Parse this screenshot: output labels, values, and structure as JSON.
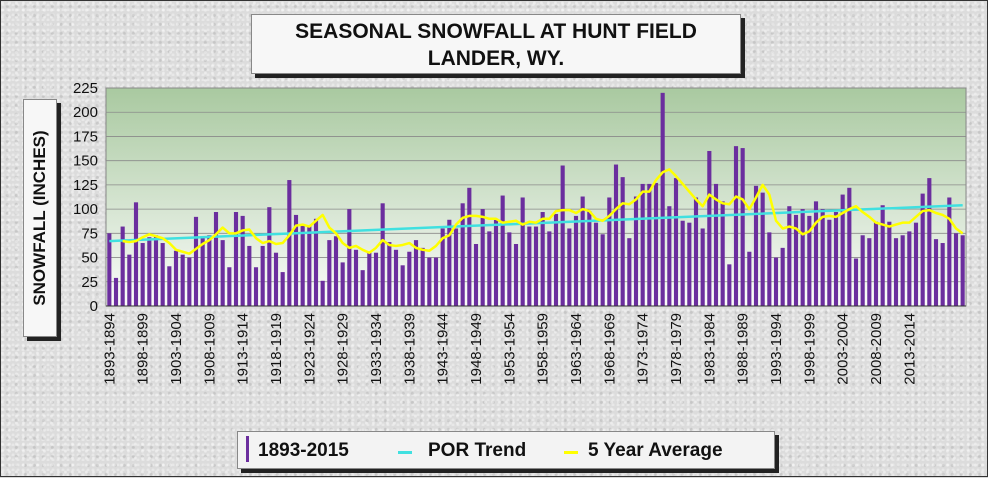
{
  "chart_data": {
    "type": "bar",
    "title_lines": [
      "SEASONAL SNOWFALL AT HUNT FIELD",
      "LANDER, WY."
    ],
    "ylabel": "SNOWFALL (INCHES)",
    "xlabel": "",
    "ylim": [
      0,
      225
    ],
    "yticks": [
      0,
      25,
      50,
      75,
      100,
      125,
      150,
      175,
      200,
      225
    ],
    "grid": true,
    "legend_position": "bottom",
    "xtick_labels": [
      "1893-1894",
      "1898-1899",
      "1903-1904",
      "1908-1909",
      "1913-1914",
      "1918-1919",
      "1923-1924",
      "1928-1929",
      "1933-1934",
      "1938-1939",
      "1943-1944",
      "1948-1949",
      "1953-1954",
      "1958-1959",
      "1963-1964",
      "1968-1969",
      "1973-1974",
      "1978-1979",
      "1983-1984",
      "1988-1989",
      "1993-1994",
      "1998-1999",
      "2003-2004",
      "2008-2009",
      "2013-2014"
    ],
    "first_season_start": 1893,
    "series": [
      {
        "name": "1893-2015",
        "kind": "bar",
        "color": "#6b2e9e",
        "values": [
          75,
          29,
          82,
          53,
          107,
          65,
          71,
          73,
          65,
          41,
          57,
          53,
          50,
          92,
          71,
          73,
          97,
          68,
          40,
          97,
          93,
          62,
          40,
          62,
          102,
          55,
          35,
          130,
          94,
          83,
          83,
          90,
          26,
          68,
          72,
          45,
          100,
          58,
          37,
          55,
          55,
          106,
          66,
          58,
          42,
          56,
          68,
          60,
          50,
          50,
          80,
          89,
          80,
          106,
          122,
          64,
          100,
          77,
          89,
          114,
          76,
          64,
          112,
          82,
          82,
          97,
          77,
          95,
          145,
          80,
          93,
          113,
          98,
          86,
          74,
          112,
          146,
          133,
          70,
          113,
          126,
          126,
          127,
          220,
          103,
          132,
          88,
          86,
          112,
          80,
          160,
          126,
          108,
          43,
          165,
          163,
          56,
          124,
          117,
          76,
          50,
          60,
          103,
          94,
          100,
          93,
          108,
          100,
          89,
          97,
          115,
          122,
          49,
          73,
          70,
          87,
          104,
          87,
          70,
          73,
          77,
          86,
          116,
          132,
          69,
          65,
          112,
          75,
          73
        ]
      },
      {
        "name": "POR Trend",
        "kind": "line",
        "color": "#40e0e0",
        "start": 67,
        "end": 104
      },
      {
        "name": "5 Year Average",
        "kind": "line",
        "color": "#ffff00",
        "values": [
          null,
          null,
          67,
          66,
          67,
          71,
          74,
          72,
          70,
          65,
          58,
          56,
          54,
          59,
          64,
          68,
          74,
          81,
          75,
          75,
          78,
          79,
          70,
          65,
          67,
          64,
          65,
          73,
          83,
          84,
          82,
          88,
          94,
          81,
          75,
          65,
          60,
          62,
          58,
          55,
          60,
          68,
          63,
          62,
          63,
          65,
          60,
          58,
          57,
          62,
          70,
          73,
          84,
          91,
          93,
          93,
          92,
          90,
          90,
          86,
          87,
          88,
          84,
          87,
          86,
          90,
          90,
          98,
          99,
          99,
          96,
          100,
          98,
          90,
          88,
          93,
          100,
          106,
          105,
          110,
          118,
          118,
          130,
          138,
          141,
          134,
          126,
          118,
          110,
          103,
          115,
          110,
          106,
          105,
          113,
          110,
          100,
          112,
          125,
          115,
          88,
          80,
          82,
          80,
          74,
          77,
          86,
          92,
          93,
          92,
          96,
          100,
          103,
          97,
          92,
          86,
          84,
          82,
          84,
          86,
          86,
          92,
          98,
          99,
          96,
          94,
          90,
          80,
          75
        ]
      }
    ]
  }
}
